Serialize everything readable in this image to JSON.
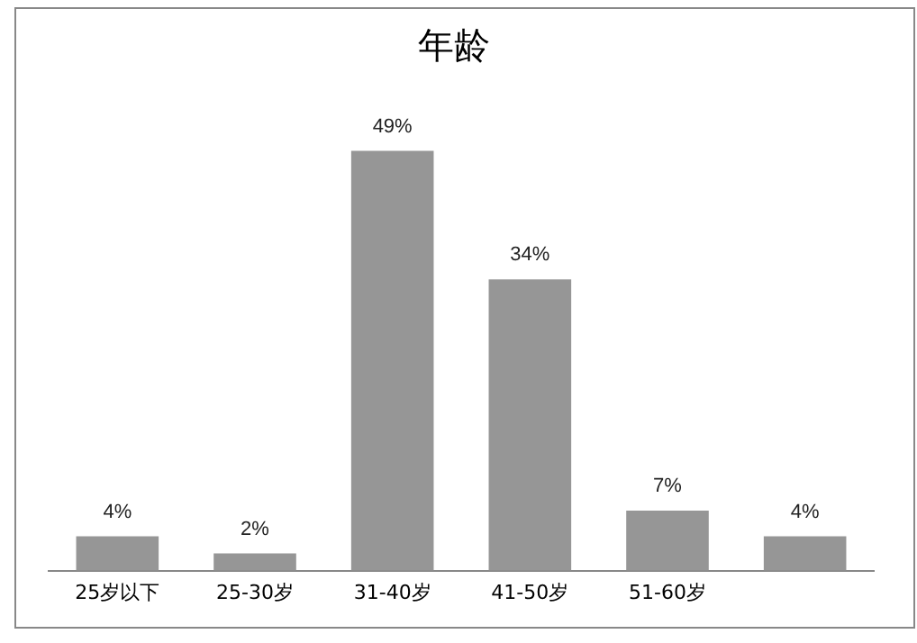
{
  "chart_data": {
    "type": "bar",
    "title": "年龄",
    "categories": [
      "25岁以下",
      "25-30岁",
      "31-40岁",
      "41-50岁",
      "51-60岁",
      null
    ],
    "values": [
      4,
      2,
      49,
      34,
      7,
      4
    ],
    "value_labels": [
      "4%",
      "2%",
      "49%",
      "34%",
      "7%",
      "4%"
    ],
    "color": "#969696",
    "relative": false,
    "grid": false,
    "legend": false
  }
}
